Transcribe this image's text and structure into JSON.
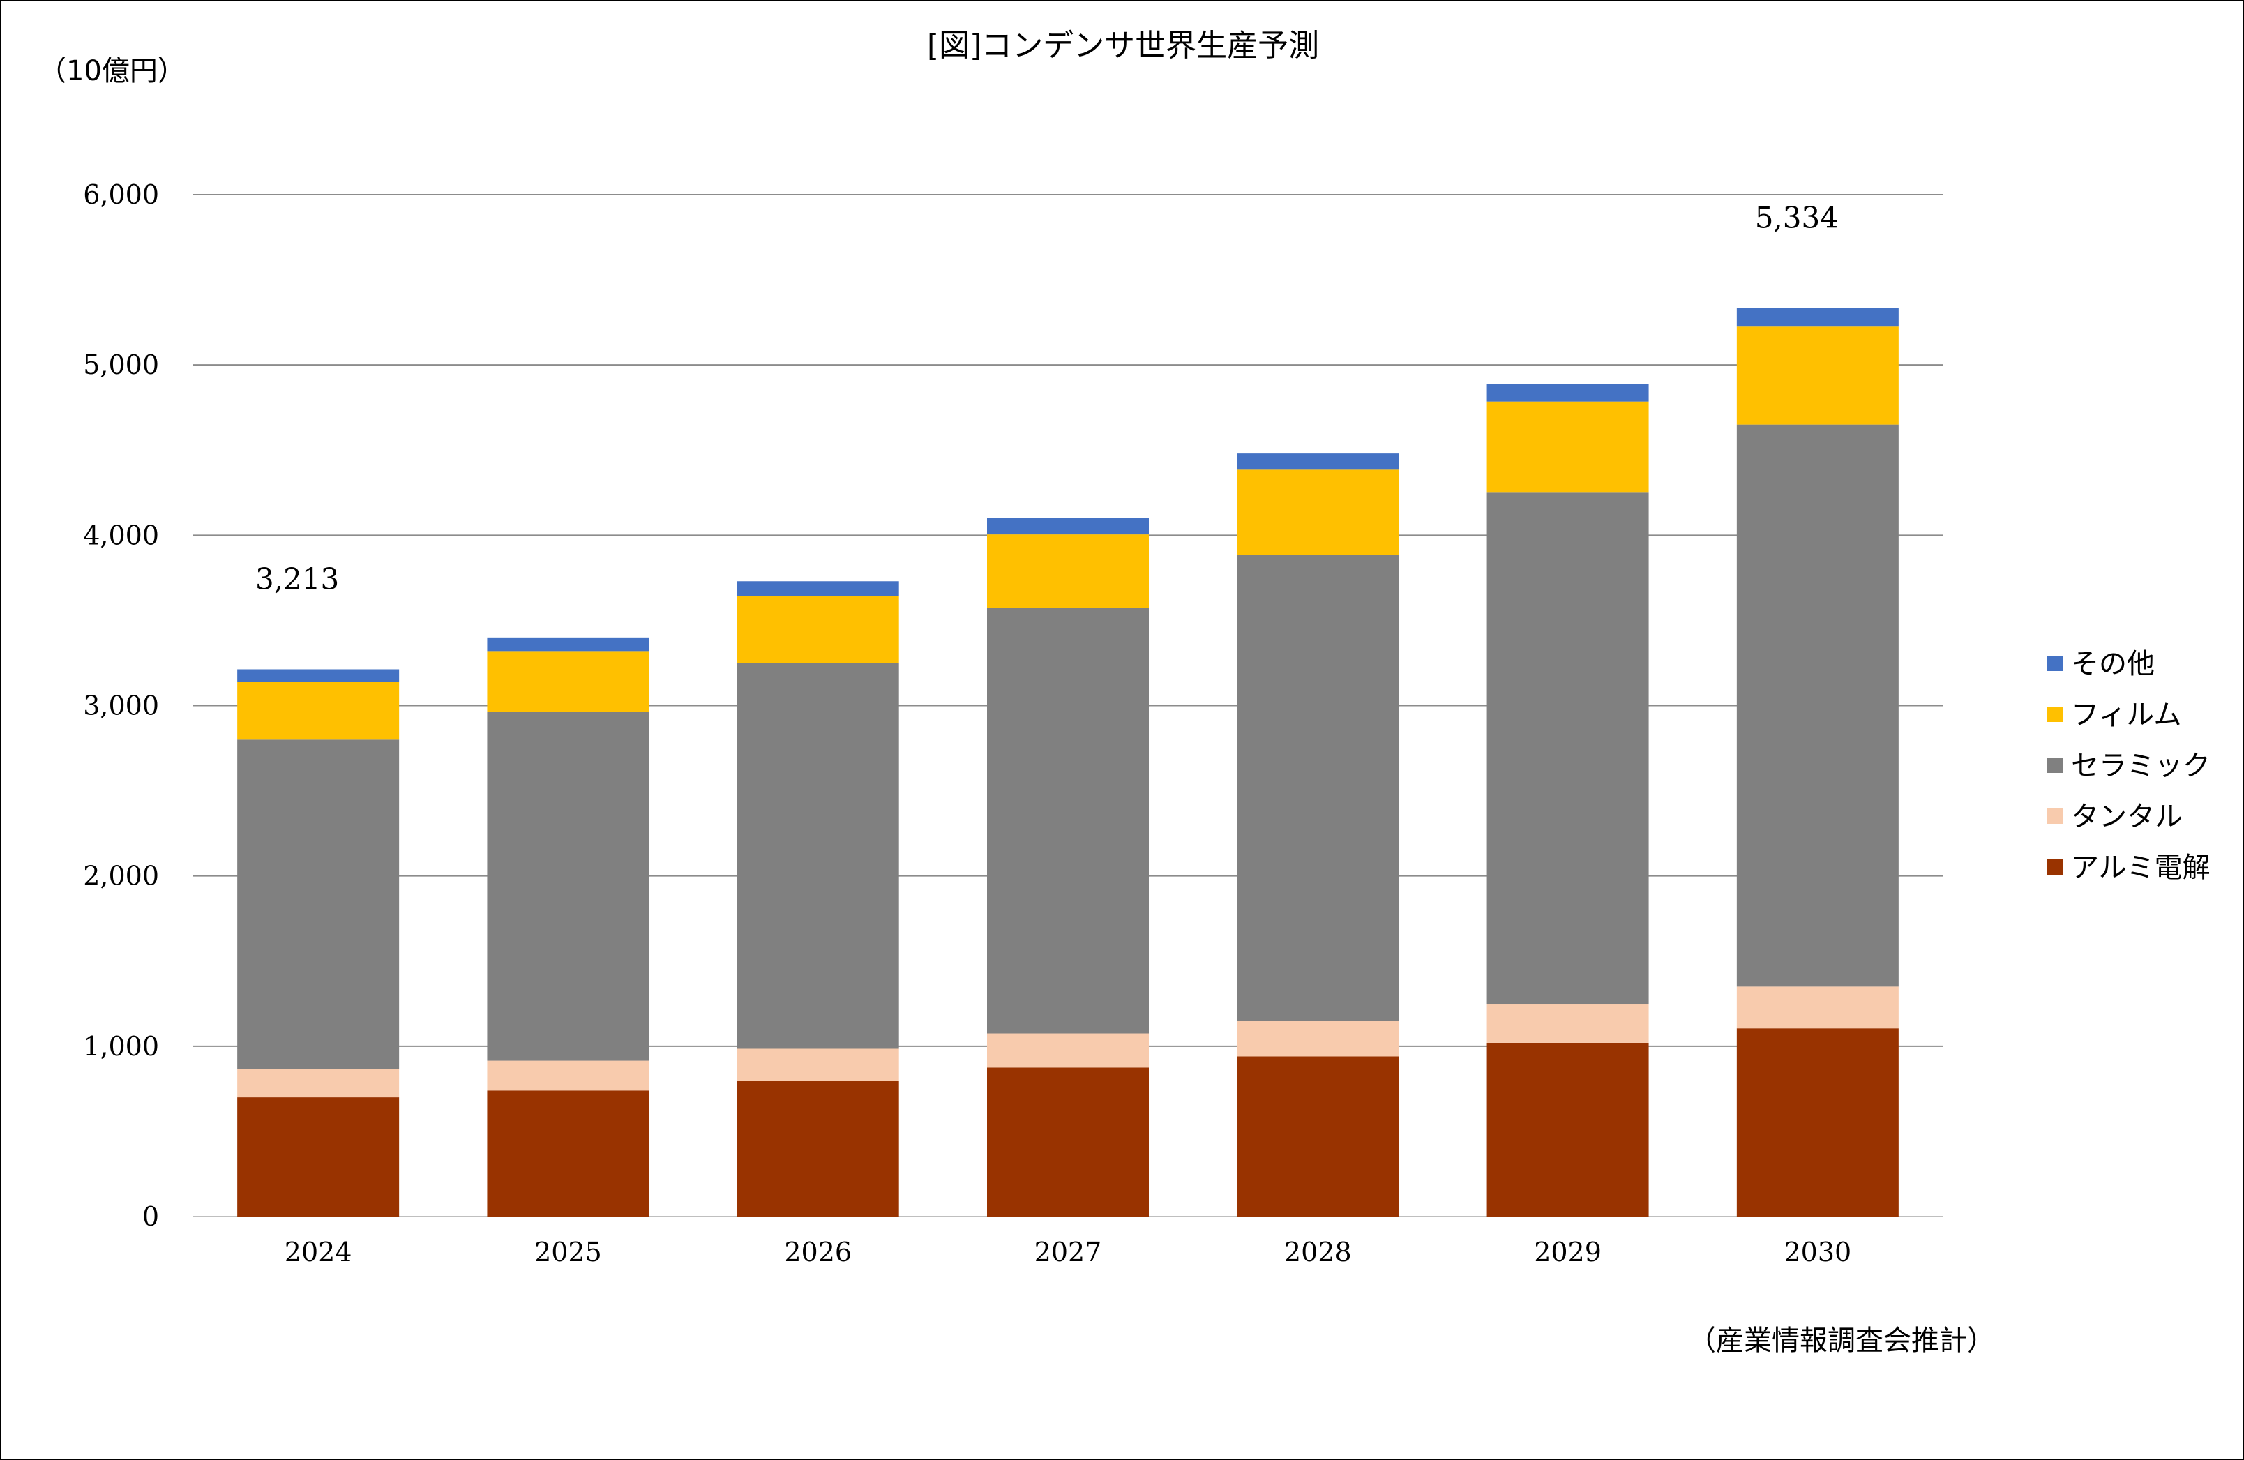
{
  "chart_data": {
    "type": "bar",
    "stacked": true,
    "title": "[図]コンデンサ世界生産予測",
    "unit_label": "（10億円）",
    "source_note": "（産業情報調査会推計）",
    "categories": [
      "2024",
      "2025",
      "2026",
      "2027",
      "2028",
      "2029",
      "2030"
    ],
    "ylim": [
      0,
      6000
    ],
    "yticks": [
      0,
      1000,
      2000,
      3000,
      4000,
      5000,
      6000
    ],
    "ytick_labels": [
      "0",
      "1,000",
      "2,000",
      "3,000",
      "4,000",
      "5,000",
      "6,000"
    ],
    "grid": true,
    "legend_position": "right",
    "series": [
      {
        "name": "アルミ電解",
        "color": "#993300",
        "values": [
          700,
          740,
          795,
          875,
          940,
          1020,
          1105
        ]
      },
      {
        "name": "タンタル",
        "color": "#F8CBAD",
        "values": [
          165,
          175,
          190,
          200,
          210,
          225,
          245
        ]
      },
      {
        "name": "セラミック",
        "color": "#808080",
        "values": [
          1935,
          2050,
          2265,
          2500,
          2735,
          3005,
          3300
        ]
      },
      {
        "name": "フィルム",
        "color": "#FFC000",
        "values": [
          340,
          355,
          395,
          430,
          500,
          535,
          575
        ]
      },
      {
        "name": "その他",
        "color": "#4472C4",
        "values": [
          73,
          80,
          85,
          95,
          95,
          105,
          109
        ]
      }
    ],
    "legend_order": [
      "その他",
      "フィルム",
      "セラミック",
      "タンタル",
      "アルミ電解"
    ],
    "total_labels": [
      {
        "category": "2024",
        "text": "3,213"
      },
      {
        "category": "2030",
        "text": "5,334"
      }
    ]
  }
}
